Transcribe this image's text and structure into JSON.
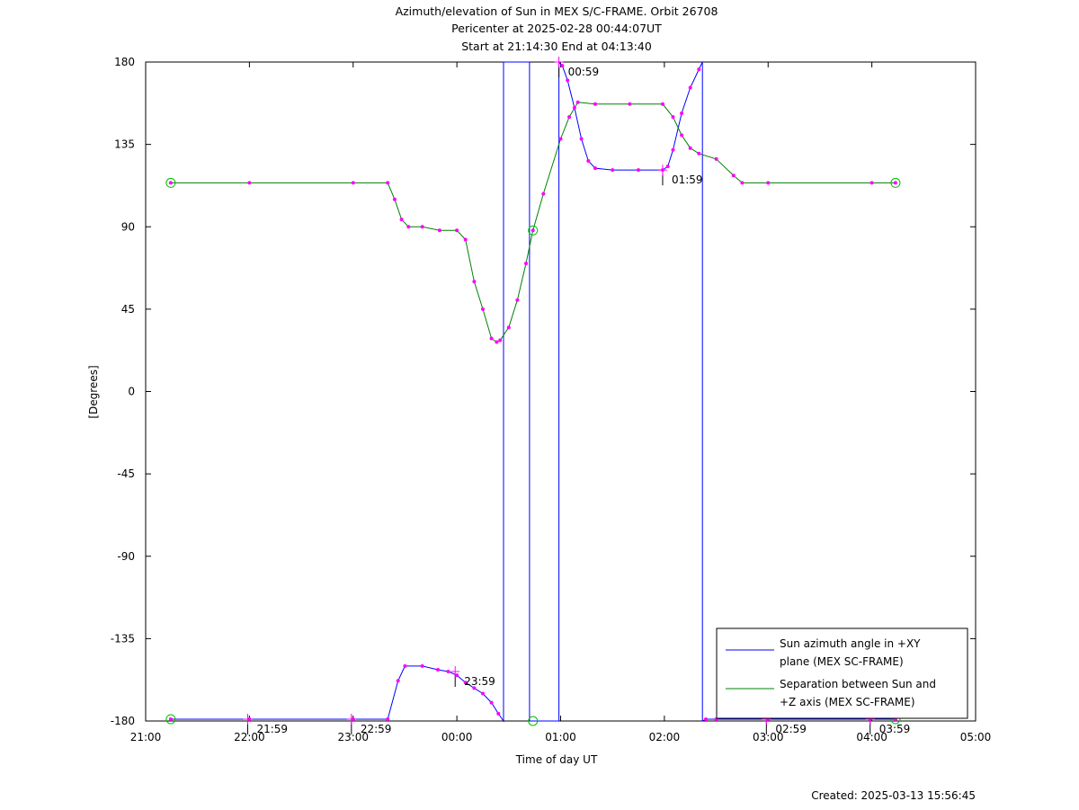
{
  "chart_data": {
    "type": "line",
    "title": [
      "Azimuth/elevation of Sun in MEX S/C-FRAME.  Orbit 26708",
      "Pericenter at 2025-02-28 00:44:07UT",
      "Start at 21:14:30 End at 04:13:40"
    ],
    "xlabel": "Time of day UT",
    "ylabel": "[Degrees]",
    "xlim": [
      "21:00",
      "05:00"
    ],
    "ylim": [
      -180,
      180
    ],
    "x_ticks": [
      "21:00",
      "22:00",
      "23:00",
      "00:00",
      "01:00",
      "02:00",
      "03:00",
      "04:00",
      "05:00"
    ],
    "y_ticks": [
      180,
      135,
      90,
      45,
      0,
      -45,
      -90,
      -135,
      -180
    ],
    "grid": false,
    "legend_position": "bottom-right",
    "series": [
      {
        "name": "Sun azimuth angle in +XY plane (MEX SC-FRAME)",
        "legend_lines": [
          "Sun azimuth angle in +XY",
          "plane (MEX SC-FRAME)"
        ],
        "color": "#0000ff",
        "points": [
          [
            "21:14:30",
            -179
          ],
          [
            "22:00",
            -179
          ],
          [
            "23:00",
            -179
          ],
          [
            "23:20",
            -179
          ],
          [
            "23:26",
            -158
          ],
          [
            "23:30",
            -150
          ],
          [
            "23:40",
            -150
          ],
          [
            "23:49",
            -152
          ],
          [
            "23:55",
            -153
          ],
          [
            "00:00",
            -155
          ],
          [
            "00:05",
            -159
          ],
          [
            "00:10",
            -162
          ],
          [
            "00:15",
            -165
          ],
          [
            "00:20",
            -170
          ],
          [
            "00:24",
            -176
          ],
          [
            "00:27",
            -180
          ],
          [
            "00:27",
            180
          ],
          [
            "00:30",
            180
          ],
          [
            "00:40",
            180
          ],
          [
            "00:42",
            180
          ],
          [
            "00:42",
            -180
          ],
          [
            "00:50",
            -180
          ],
          [
            "00:59",
            -180
          ],
          [
            "00:59",
            180
          ],
          [
            "01:01",
            178
          ],
          [
            "01:04",
            170
          ],
          [
            "01:08",
            155
          ],
          [
            "01:12",
            138
          ],
          [
            "01:16",
            126
          ],
          [
            "01:20",
            122
          ],
          [
            "01:30",
            121
          ],
          [
            "01:45",
            121
          ],
          [
            "01:59",
            121
          ],
          [
            "02:02",
            123
          ],
          [
            "02:05",
            132
          ],
          [
            "02:10",
            152
          ],
          [
            "02:15",
            166
          ],
          [
            "02:20",
            176
          ],
          [
            "02:22",
            180
          ],
          [
            "02:22",
            -180
          ],
          [
            "02:24",
            -179
          ],
          [
            "02:30",
            -179
          ],
          [
            "03:00",
            -179
          ],
          [
            "03:59",
            -179
          ],
          [
            "04:13:40",
            -179
          ]
        ]
      },
      {
        "name": "Separation between Sun and +Z axis (MEX SC-FRAME)",
        "legend_lines": [
          "Separation between Sun and",
          "+Z axis (MEX SC-FRAME)"
        ],
        "color": "#008000",
        "points": [
          [
            "21:14:30",
            114
          ],
          [
            "22:00",
            114
          ],
          [
            "23:00",
            114
          ],
          [
            "23:20",
            114
          ],
          [
            "23:24",
            105
          ],
          [
            "23:28",
            94
          ],
          [
            "23:32",
            90
          ],
          [
            "23:40",
            90
          ],
          [
            "23:50",
            88
          ],
          [
            "00:00",
            88
          ],
          [
            "00:05",
            83
          ],
          [
            "00:10",
            60
          ],
          [
            "00:15",
            45
          ],
          [
            "00:20",
            29
          ],
          [
            "00:23",
            27
          ],
          [
            "00:25",
            28
          ],
          [
            "00:30",
            35
          ],
          [
            "00:35",
            50
          ],
          [
            "00:40",
            70
          ],
          [
            "00:44",
            88
          ],
          [
            "00:50",
            108
          ],
          [
            "01:00",
            138
          ],
          [
            "01:05",
            150
          ],
          [
            "01:10",
            158
          ],
          [
            "01:20",
            157
          ],
          [
            "01:40",
            157
          ],
          [
            "01:59",
            157
          ],
          [
            "02:05",
            150
          ],
          [
            "02:10",
            140
          ],
          [
            "02:15",
            133
          ],
          [
            "02:20",
            130
          ],
          [
            "02:30",
            127
          ],
          [
            "02:40",
            118
          ],
          [
            "02:45",
            114
          ],
          [
            "03:00",
            114
          ],
          [
            "04:00",
            114
          ],
          [
            "04:13:40",
            114
          ]
        ]
      }
    ],
    "markers": [
      {
        "time": "21:14:30",
        "value": 114
      },
      {
        "time": "21:14:30",
        "value": -179
      },
      {
        "time": "00:44",
        "value": 88
      },
      {
        "time": "00:44",
        "value": -180
      },
      {
        "time": "04:13:40",
        "value": 114
      },
      {
        "time": "04:13:40",
        "value": -179
      }
    ],
    "annotations": [
      {
        "label": "00:59",
        "time": "00:59",
        "value": 180
      },
      {
        "label": "01:59",
        "time": "01:59",
        "value": 121
      },
      {
        "label": "23:59",
        "time": "23:59",
        "value": -153
      },
      {
        "label": "21:59",
        "time": "21:59",
        "value": -179
      },
      {
        "label": "22:59",
        "time": "22:59",
        "value": -179
      },
      {
        "label": "02:59",
        "time": "02:59",
        "value": -179
      },
      {
        "label": "03:59",
        "time": "03:59",
        "value": -179
      }
    ],
    "footer": "Created: 2025-03-13 15:56:45"
  }
}
